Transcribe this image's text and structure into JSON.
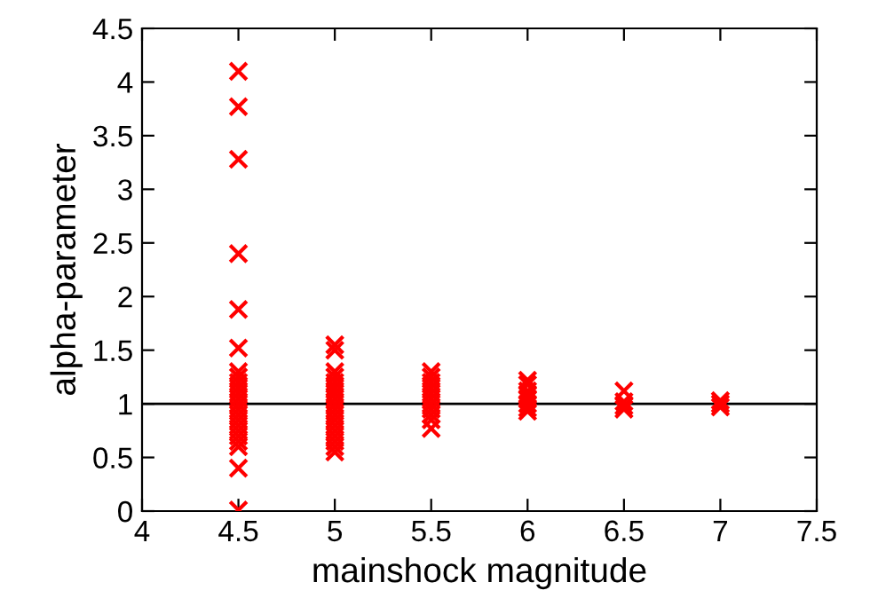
{
  "chart_data": {
    "type": "scatter",
    "xlabel": "mainshock magnitude",
    "ylabel": "alpha-parameter",
    "series": [
      {
        "color": "#ff0000",
        "x": [
          4.5,
          4.5,
          4.5,
          4.5,
          4.5,
          4.5,
          4.5,
          4.5,
          4.5,
          4.5,
          4.5,
          4.5,
          4.5,
          4.5,
          4.5,
          4.5,
          4.5,
          4.5,
          4.5,
          4.5,
          4.5,
          4.5,
          4.5,
          5,
          5,
          5,
          5,
          5,
          5,
          5,
          5,
          5,
          5,
          5,
          5,
          5,
          5,
          5,
          5,
          5,
          5,
          5.5,
          5.5,
          5.5,
          5.5,
          5.5,
          5.5,
          5.5,
          5.5,
          5.5,
          5.5,
          5.5,
          6,
          6,
          6,
          6,
          6,
          6,
          6,
          6,
          6.5,
          6.5,
          6.5,
          6.5,
          7,
          7,
          7
        ],
        "values": [
          4.1,
          3.77,
          3.28,
          2.4,
          1.88,
          1.52,
          1.3,
          1.25,
          1.2,
          1.15,
          1.1,
          1.05,
          1.0,
          0.95,
          0.9,
          0.85,
          0.8,
          0.75,
          0.7,
          0.65,
          0.6,
          0.4,
          0.01,
          1.55,
          1.5,
          1.3,
          1.25,
          1.2,
          1.15,
          1.1,
          1.05,
          1.0,
          0.95,
          0.9,
          0.85,
          0.8,
          0.75,
          0.7,
          0.65,
          0.6,
          0.55,
          1.3,
          1.25,
          1.2,
          1.15,
          1.1,
          1.05,
          1.0,
          0.95,
          0.9,
          0.85,
          0.77,
          1.22,
          1.18,
          1.12,
          1.08,
          1.04,
          1.0,
          0.96,
          0.93,
          1.12,
          1.02,
          0.98,
          0.95,
          1.03,
          1.0,
          0.97
        ]
      }
    ],
    "marker": "cross",
    "ref_lines": [
      {
        "axis": "y",
        "value": 1,
        "color": "#000000",
        "line_style": "solid"
      }
    ],
    "xlim": [
      4,
      7.5
    ],
    "xticks": [
      4,
      4.5,
      5,
      5.5,
      6,
      6.5,
      7,
      7.5
    ],
    "ylim": [
      0,
      4.5
    ],
    "yticks": [
      0,
      0.5,
      1,
      1.5,
      2,
      2.5,
      3,
      3.5,
      4,
      4.5
    ],
    "grid": false
  }
}
